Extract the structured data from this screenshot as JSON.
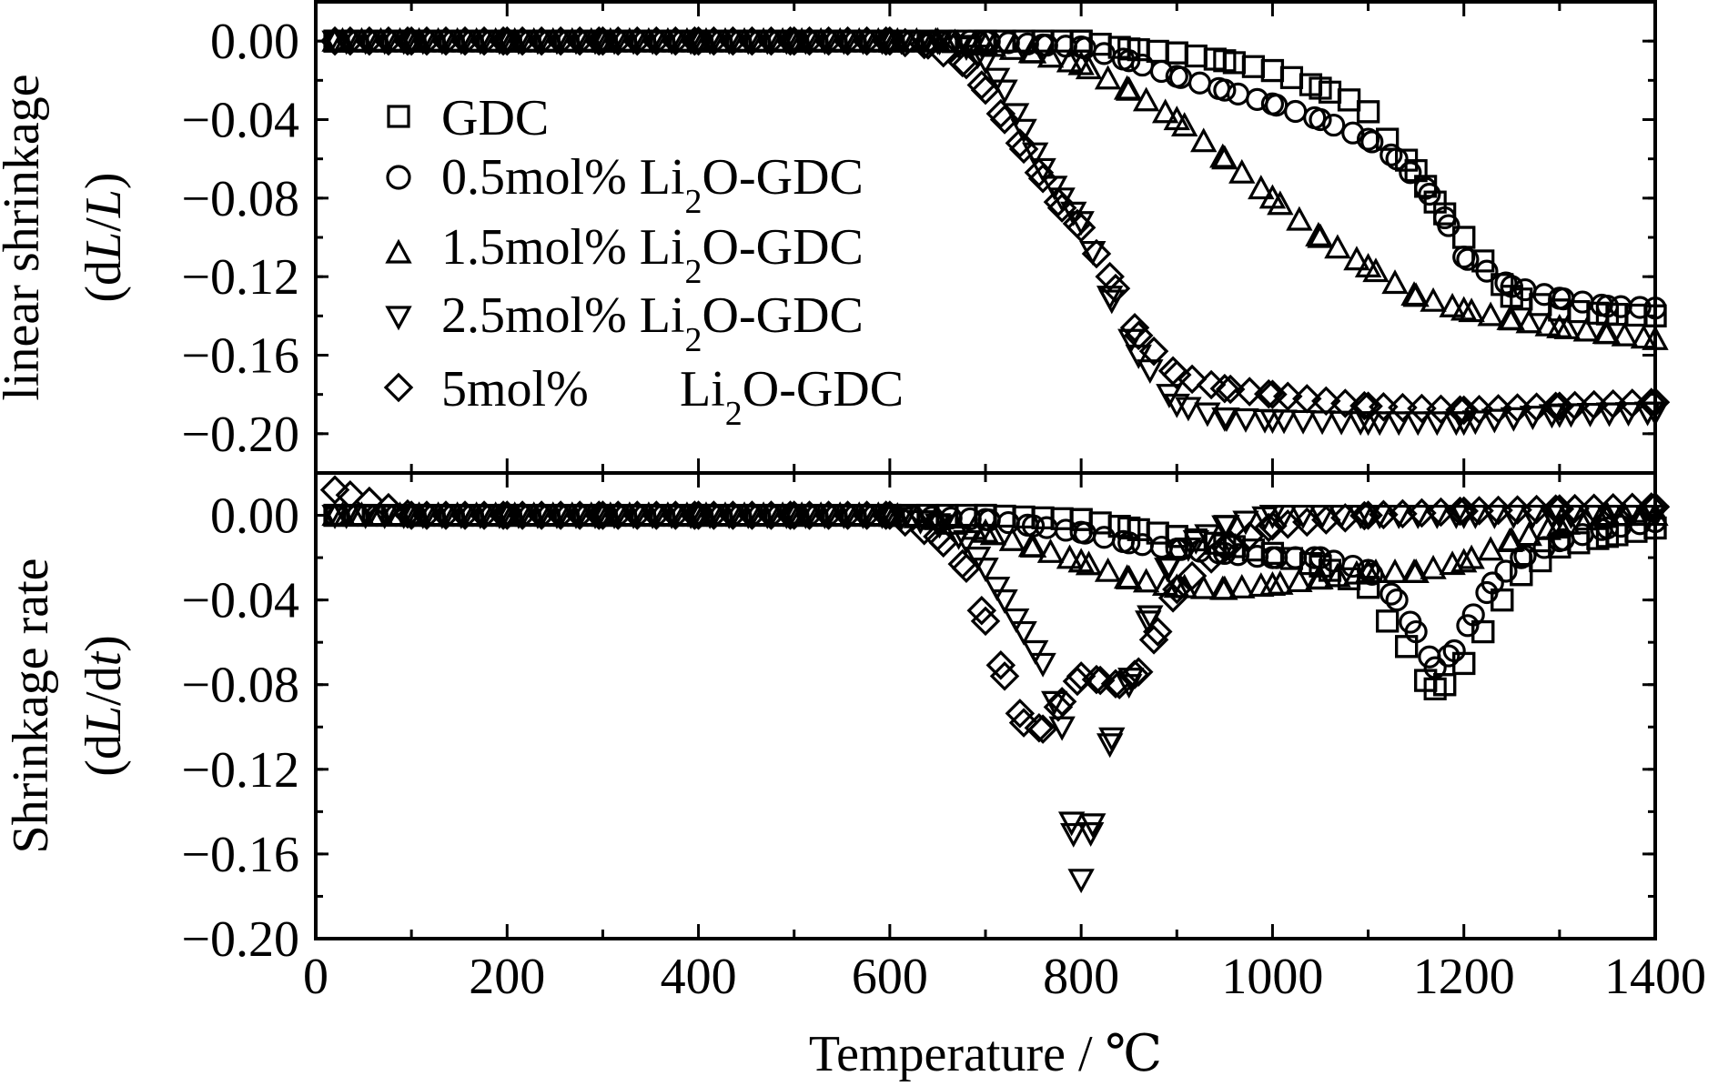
{
  "chart_data": [
    {
      "type": "scatter",
      "panel": "top",
      "ylabel": "linear shrinkage",
      "ylabel_unit": "(dL/L)",
      "ylim": [
        -0.22,
        0.02
      ],
      "yticks": [
        0.0,
        -0.04,
        -0.08,
        -0.12,
        -0.16,
        -0.2
      ],
      "ytick_labels": [
        "0.00",
        "−0.04",
        "−0.08",
        "−0.12",
        "−0.16",
        "−0.20"
      ],
      "xlim": [
        0,
        1400
      ],
      "legend_position": "upper-left",
      "series": [
        {
          "name": "GDC",
          "marker": "square",
          "x": [
            20,
            100,
            200,
            300,
            400,
            500,
            600,
            700,
            800,
            850,
            900,
            950,
            1000,
            1050,
            1080,
            1100,
            1120,
            1150,
            1170,
            1200,
            1250,
            1300,
            1350,
            1400
          ],
          "y": [
            0.0,
            0.0,
            0.0,
            0.0,
            0.0,
            0.0,
            0.0,
            0.0,
            0.0,
            -0.004,
            -0.006,
            -0.01,
            -0.015,
            -0.024,
            -0.03,
            -0.036,
            -0.05,
            -0.066,
            -0.082,
            -0.1,
            -0.13,
            -0.137,
            -0.139,
            -0.14
          ]
        },
        {
          "name": "0.5mol% Li2O-GDC",
          "marker": "circle",
          "x": [
            20,
            100,
            200,
            300,
            400,
            500,
            600,
            700,
            760,
            800,
            850,
            900,
            950,
            1000,
            1050,
            1100,
            1130,
            1160,
            1180,
            1200,
            1250,
            1300,
            1350,
            1400
          ],
          "y": [
            0.0,
            0.0,
            0.0,
            0.0,
            0.0,
            0.0,
            0.0,
            0.0,
            -0.002,
            -0.003,
            -0.01,
            -0.018,
            -0.025,
            -0.032,
            -0.04,
            -0.05,
            -0.06,
            -0.075,
            -0.09,
            -0.11,
            -0.125,
            -0.131,
            -0.135,
            -0.136
          ]
        },
        {
          "name": "1.5mol% Li2O-GDC",
          "marker": "triangle-up",
          "x": [
            20,
            100,
            200,
            300,
            400,
            500,
            600,
            650,
            700,
            750,
            800,
            850,
            900,
            950,
            1000,
            1050,
            1100,
            1150,
            1200,
            1250,
            1300,
            1350,
            1400
          ],
          "y": [
            0.0,
            0.0,
            0.0,
            0.0,
            0.0,
            0.0,
            0.0,
            0.0,
            -0.002,
            -0.006,
            -0.012,
            -0.025,
            -0.04,
            -0.06,
            -0.08,
            -0.1,
            -0.115,
            -0.13,
            -0.137,
            -0.142,
            -0.146,
            -0.149,
            -0.152
          ]
        },
        {
          "name": "2.5mol% Li2O-GDC",
          "marker": "triangle-down",
          "x": [
            20,
            100,
            200,
            300,
            400,
            500,
            600,
            650,
            680,
            700,
            720,
            740,
            760,
            780,
            800,
            830,
            860,
            900,
            950,
            1000,
            1100,
            1200,
            1300,
            1400
          ],
          "y": [
            0.0,
            0.0,
            0.0,
            0.0,
            0.0,
            0.0,
            0.0,
            0.0,
            -0.003,
            -0.01,
            -0.025,
            -0.045,
            -0.065,
            -0.08,
            -0.092,
            -0.13,
            -0.16,
            -0.185,
            -0.192,
            -0.193,
            -0.194,
            -0.194,
            -0.19,
            -0.189
          ]
        },
        {
          "name": "5mol% Li2O-GDC",
          "marker": "diamond",
          "x": [
            20,
            100,
            200,
            300,
            400,
            500,
            600,
            640,
            680,
            700,
            720,
            740,
            760,
            780,
            800,
            830,
            860,
            900,
            950,
            1000,
            1100,
            1200,
            1300,
            1400
          ],
          "y": [
            0.0,
            0.0,
            0.0,
            0.0,
            0.0,
            0.0,
            0.0,
            -0.002,
            -0.012,
            -0.025,
            -0.04,
            -0.055,
            -0.07,
            -0.085,
            -0.095,
            -0.12,
            -0.15,
            -0.17,
            -0.177,
            -0.18,
            -0.186,
            -0.188,
            -0.186,
            -0.184
          ]
        }
      ]
    },
    {
      "type": "scatter",
      "panel": "bottom",
      "xlabel": "Temperature / ℃",
      "ylabel": "Shrinkage rate",
      "ylabel_unit": "(dL/dt)",
      "xlim": [
        0,
        1400
      ],
      "xticks": [
        0,
        200,
        400,
        600,
        800,
        1000,
        1200,
        1400
      ],
      "xtick_labels": [
        "0",
        "200",
        "400",
        "600",
        "800",
        "1000",
        "1200",
        "1400"
      ],
      "ylim": [
        -0.2,
        0.02
      ],
      "yticks": [
        0.0,
        -0.04,
        -0.08,
        -0.12,
        -0.16,
        -0.2
      ],
      "ytick_labels": [
        "0.00",
        "−0.04",
        "−0.08",
        "−0.12",
        "−0.16",
        "−0.20"
      ],
      "series": [
        {
          "name": "GDC",
          "marker": "square",
          "x": [
            20,
            100,
            200,
            300,
            400,
            500,
            600,
            700,
            800,
            850,
            900,
            950,
            1000,
            1050,
            1100,
            1120,
            1140,
            1160,
            1170,
            1180,
            1200,
            1220,
            1240,
            1260,
            1300,
            1350,
            1400
          ],
          "y": [
            0.0,
            0.0,
            0.0,
            0.0,
            0.0,
            0.0,
            0.0,
            0.0,
            -0.002,
            -0.006,
            -0.01,
            -0.014,
            -0.018,
            -0.024,
            -0.034,
            -0.05,
            -0.062,
            -0.078,
            -0.082,
            -0.08,
            -0.07,
            -0.055,
            -0.04,
            -0.028,
            -0.015,
            -0.01,
            -0.006
          ]
        },
        {
          "name": "0.5mol% Li2O-GDC",
          "marker": "circle",
          "x": [
            20,
            100,
            200,
            300,
            400,
            500,
            600,
            700,
            750,
            800,
            850,
            900,
            950,
            1000,
            1050,
            1100,
            1130,
            1150,
            1170,
            1190,
            1210,
            1230,
            1260,
            1300,
            1350,
            1400
          ],
          "y": [
            0.0,
            0.0,
            0.0,
            0.0,
            0.0,
            0.0,
            0.0,
            -0.002,
            -0.005,
            -0.008,
            -0.013,
            -0.016,
            -0.018,
            -0.02,
            -0.02,
            -0.026,
            -0.04,
            -0.055,
            -0.072,
            -0.064,
            -0.047,
            -0.032,
            -0.02,
            -0.012,
            -0.006,
            -0.003
          ]
        },
        {
          "name": "1.5mol% Li2O-GDC",
          "marker": "triangle-up",
          "x": [
            20,
            100,
            200,
            300,
            400,
            500,
            600,
            650,
            700,
            750,
            800,
            850,
            900,
            950,
            1000,
            1050,
            1100,
            1150,
            1200,
            1250,
            1300,
            1350,
            1400
          ],
          "y": [
            0.0,
            0.0,
            0.0,
            0.0,
            0.0,
            0.0,
            0.0,
            -0.002,
            -0.008,
            -0.015,
            -0.022,
            -0.03,
            -0.034,
            -0.035,
            -0.033,
            -0.03,
            -0.027,
            -0.027,
            -0.022,
            -0.012,
            -0.005,
            0.0,
            0.0
          ]
        },
        {
          "name": "2.5mol% Li2O-GDC",
          "marker": "triangle-down",
          "x": [
            20,
            100,
            200,
            300,
            400,
            500,
            600,
            650,
            680,
            700,
            720,
            740,
            760,
            780,
            790,
            800,
            810,
            830,
            850,
            870,
            890,
            920,
            950,
            1000,
            1100,
            1200,
            1300,
            1400
          ],
          "y": [
            0.0,
            0.0,
            0.0,
            0.0,
            0.0,
            0.0,
            0.0,
            -0.004,
            -0.012,
            -0.025,
            -0.04,
            -0.055,
            -0.07,
            -0.1,
            -0.145,
            -0.172,
            -0.15,
            -0.108,
            -0.08,
            -0.05,
            -0.025,
            -0.012,
            -0.005,
            0.0,
            0.0,
            0.0,
            0.0,
            0.0
          ]
        },
        {
          "name": "5mol% Li2O-GDC",
          "marker": "diamond",
          "x": [
            20,
            100,
            200,
            300,
            400,
            500,
            600,
            650,
            680,
            700,
            720,
            740,
            760,
            780,
            800,
            820,
            840,
            860,
            880,
            900,
            950,
            1000,
            1100,
            1200,
            1300,
            1400
          ],
          "y": [
            0.012,
            0.0,
            0.0,
            0.0,
            0.0,
            0.0,
            0.0,
            -0.01,
            -0.025,
            -0.05,
            -0.076,
            -0.098,
            -0.101,
            -0.088,
            -0.076,
            -0.078,
            -0.08,
            -0.074,
            -0.055,
            -0.035,
            -0.015,
            -0.005,
            0.0,
            0.002,
            0.003,
            0.004
          ]
        }
      ]
    }
  ]
}
